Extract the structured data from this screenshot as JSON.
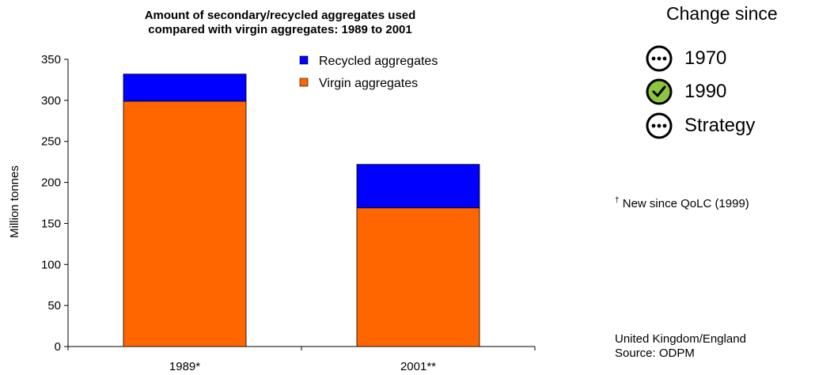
{
  "chart_data": {
    "type": "bar",
    "stacked": true,
    "title_line1": "Amount of secondary/recycled aggregates used",
    "title_line2": "compared with virgin aggregates: 1989 to 2001",
    "ylabel": "Million tonnes",
    "xlabel": "",
    "ylim": [
      0,
      350
    ],
    "yticks": [
      0,
      50,
      100,
      150,
      200,
      250,
      300,
      350
    ],
    "categories": [
      "1989*",
      "2001**"
    ],
    "series": [
      {
        "name": "Virgin aggregates",
        "color": "#ff6600",
        "values": [
          299,
          169
        ]
      },
      {
        "name": "Recycled aggregates",
        "color": "#0000ff",
        "values": [
          33,
          53
        ]
      }
    ],
    "legend": [
      {
        "name": "Recycled aggregates",
        "color": "#0000ff"
      },
      {
        "name": "Virgin aggregates",
        "color": "#ff6600"
      }
    ],
    "legend_position": "top-right",
    "grid": false
  },
  "indicators": {
    "title": "Change since",
    "items": [
      {
        "label": "1970",
        "icon": "ellipsis-circle-icon",
        "status": "neutral"
      },
      {
        "label": "1990",
        "icon": "check-circle-icon",
        "status": "improvement",
        "color": "#8cc63f"
      },
      {
        "label": "Strategy",
        "icon": "ellipsis-circle-icon",
        "status": "neutral"
      }
    ]
  },
  "note": {
    "mark": "†",
    "text": " New since QoLC (1999)"
  },
  "footer": {
    "region": "United Kingdom/England",
    "source": "Source: ODPM"
  }
}
